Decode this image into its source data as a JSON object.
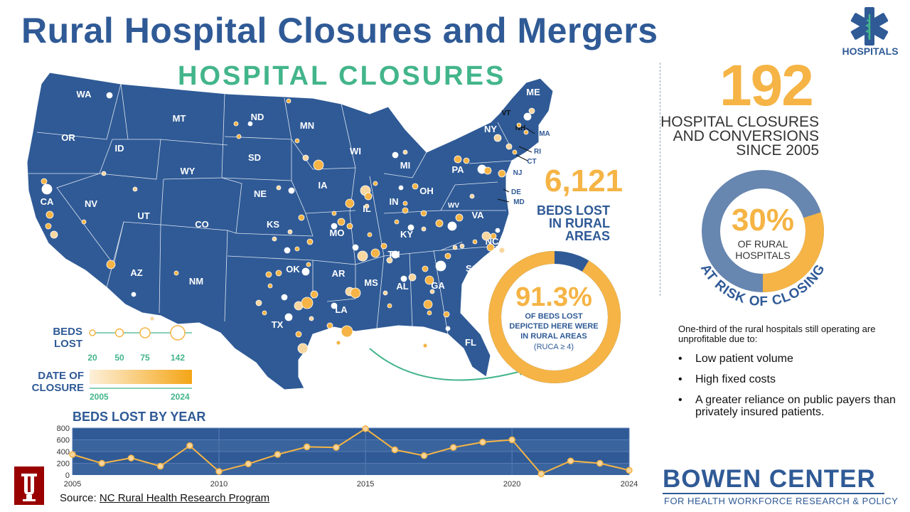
{
  "title": "Rural Hospital Closures and Mergers",
  "map": {
    "heading": "HOSPITAL CLOSURES",
    "state_labels": [
      "WA",
      "OR",
      "CA",
      "NV",
      "ID",
      "MT",
      "WY",
      "UT",
      "AZ",
      "NM",
      "CO",
      "ND",
      "SD",
      "NE",
      "KS",
      "OK",
      "TX",
      "MN",
      "IA",
      "MO",
      "AR",
      "LA",
      "WI",
      "IL",
      "MI",
      "IN",
      "OH",
      "KY",
      "TN",
      "MS",
      "AL",
      "GA",
      "FL",
      "SC",
      "NC",
      "VA",
      "WV",
      "PA",
      "NY",
      "VT",
      "NH",
      "ME",
      "MA",
      "RI",
      "CT",
      "NJ",
      "DE",
      "MD"
    ],
    "legend": {
      "beds_title_1": "BEDS",
      "beds_title_2": "LOST",
      "beds_values": [
        "20",
        "50",
        "75",
        "142"
      ],
      "date_title_1": "DATE OF",
      "date_title_2": "CLOSURE",
      "date_start": "2005",
      "date_end": "2024"
    }
  },
  "logo": {
    "label": "HOSPITALS",
    "icon": "star-of-life-icon"
  },
  "stats": {
    "closures_value": "192",
    "closures_line1": "HOSPITAL CLOSURES",
    "closures_line2": "AND CONVERSIONS",
    "closures_line3": "SINCE 2005",
    "beds_lost_value": "6,121",
    "beds_lost_line1": "BEDS LOST",
    "beds_lost_line2": "IN RURAL",
    "beds_lost_line3": "AREAS",
    "rural_beds_pct": "91.3%",
    "rural_beds_fraction": 0.913,
    "rural_beds_line1": "OF BEDS LOST",
    "rural_beds_line2": "DEPICTED HERE WERE",
    "rural_beds_line3": "IN RURAL AREAS",
    "ruca_note": "(RUCA ≥ 4)",
    "risk_pct": "30%",
    "risk_fraction": 0.3,
    "risk_line1": "OF RURAL",
    "risk_line2": "HOSPITALS",
    "risk_arc_label": "AT RISK OF CLOSING"
  },
  "unprofitable": {
    "intro": "One-third of the rural hospitals still operating are unprofitable due to:",
    "bullets": [
      "Low patient volume",
      "High fixed costs",
      "A greater reliance on public payers than privately insured patients."
    ]
  },
  "chart_data": {
    "type": "line",
    "title": "BEDS LOST BY YEAR",
    "xlabel": "",
    "ylabel": "",
    "x": [
      2005,
      2006,
      2007,
      2008,
      2009,
      2010,
      2011,
      2012,
      2013,
      2014,
      2015,
      2016,
      2017,
      2018,
      2019,
      2020,
      2021,
      2022,
      2023,
      2024
    ],
    "values": [
      350,
      200,
      290,
      150,
      500,
      60,
      190,
      350,
      480,
      470,
      790,
      430,
      330,
      470,
      560,
      600,
      20,
      240,
      200,
      80
    ],
    "xticks": [
      "2005",
      "2010",
      "2015",
      "2020",
      "2024"
    ],
    "yticks": [
      "0",
      "200",
      "400",
      "600",
      "800"
    ],
    "ylim": [
      0,
      800
    ],
    "colors": {
      "line": "#f5b445",
      "background": "#2f5a96"
    }
  },
  "source": {
    "prefix": "Source: ",
    "link_text": "NC Rural Health Research Program"
  },
  "footer": {
    "center_name": "BOWEN CENTER",
    "center_sub": "FOR HEALTH WORKFORCE RESEARCH & POLICY"
  },
  "colors": {
    "navy": "#2f5a96",
    "gold": "#f5b445",
    "green": "#43b58b",
    "steel": "#6786b0"
  }
}
